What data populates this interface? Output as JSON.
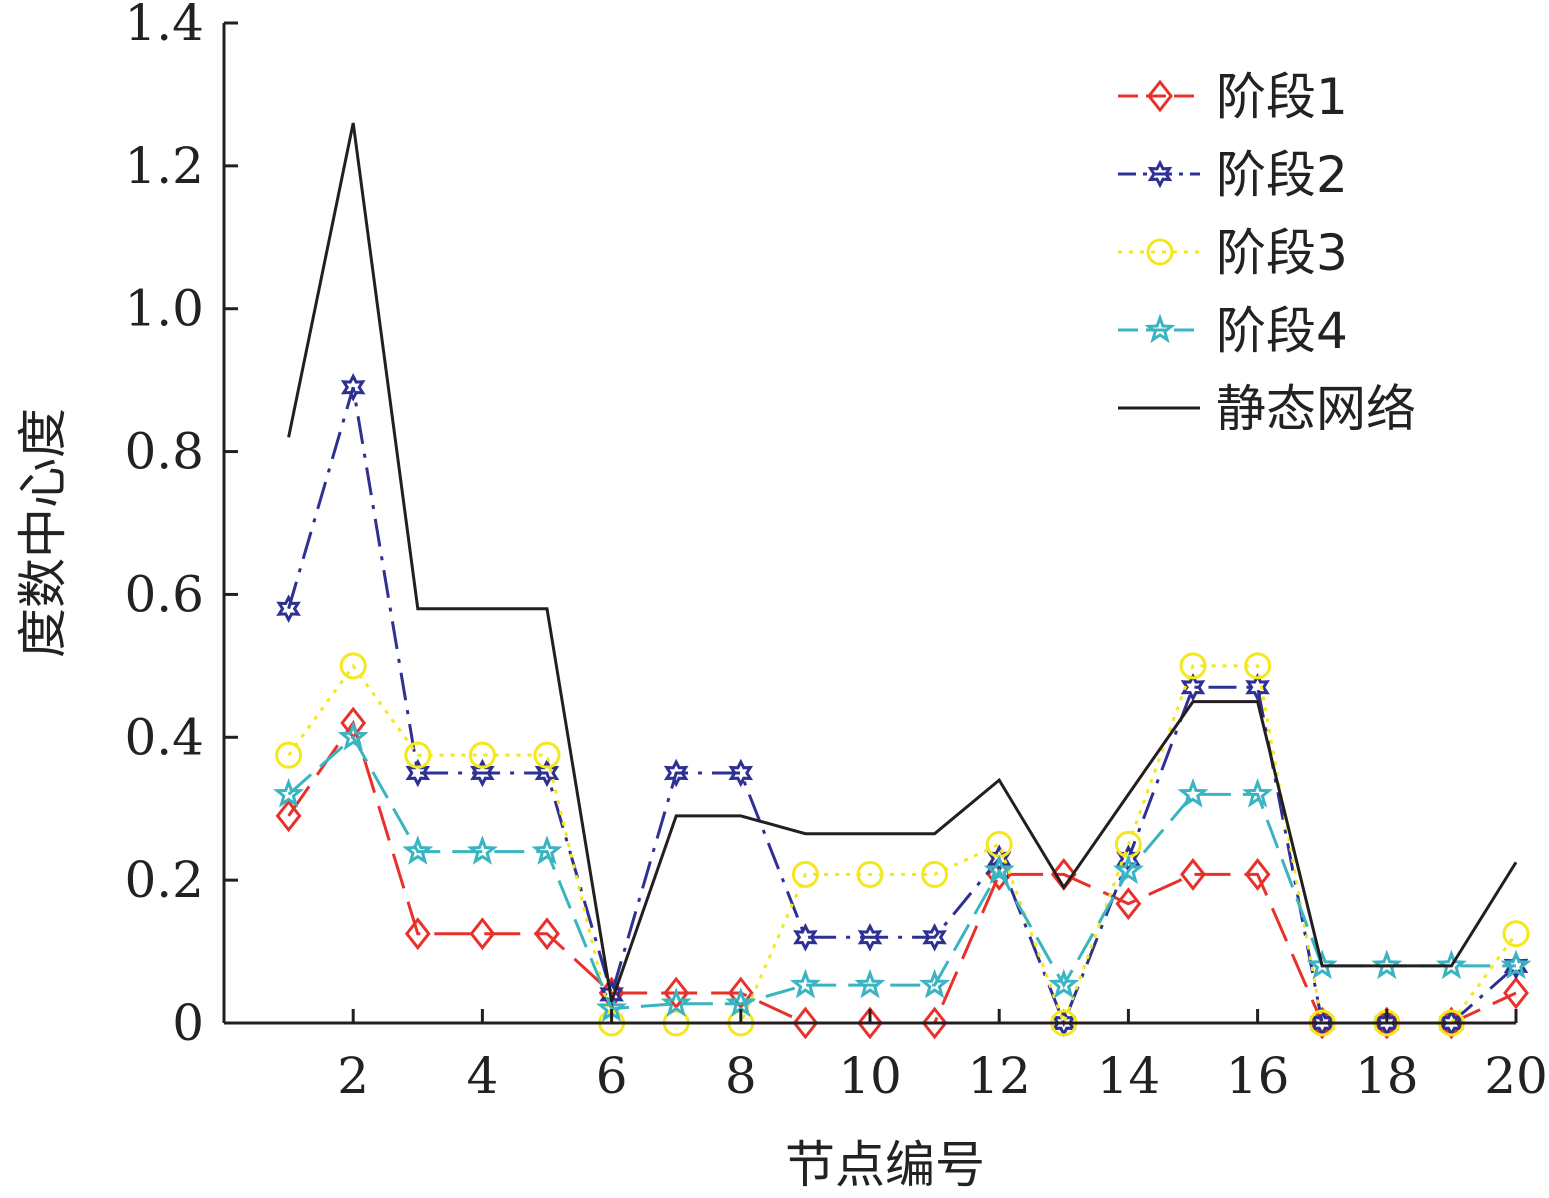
{
  "chart_data": {
    "type": "line",
    "xlabel": "节点编号",
    "ylabel": "度数中心度",
    "xlim": [
      0,
      20
    ],
    "ylim": [
      0,
      1.4
    ],
    "x": [
      1,
      2,
      3,
      4,
      5,
      6,
      7,
      8,
      9,
      10,
      11,
      12,
      13,
      14,
      15,
      16,
      17,
      18,
      19,
      20
    ],
    "x_ticks": [
      2,
      4,
      6,
      8,
      10,
      12,
      14,
      16,
      18,
      20
    ],
    "x_tick_labels": [
      "2",
      "4",
      "6",
      "8",
      "10",
      "12",
      "14",
      "16",
      "18",
      "20"
    ],
    "y_ticks": [
      0,
      0.2,
      0.4,
      0.6,
      0.8,
      1.0,
      1.2,
      1.4
    ],
    "y_tick_labels": [
      "0",
      "0.2",
      "0.4",
      "0.6",
      "0.8",
      "1.0",
      "1.2",
      "1.4"
    ],
    "legend_position": "top-right",
    "series": [
      {
        "name": "阶段1",
        "color": "#e8312a",
        "marker": "diamond",
        "dash": "36 14",
        "values": [
          0.29,
          0.42,
          0.125,
          0.125,
          0.125,
          0.042,
          0.042,
          0.042,
          0,
          0,
          0,
          0.208,
          0.208,
          0.167,
          0.208,
          0.208,
          0,
          0,
          0,
          0.042
        ]
      },
      {
        "name": "阶段2",
        "color": "#2e3192",
        "marker": "star6",
        "dash": "28 10 4 10",
        "values": [
          0.58,
          0.89,
          0.35,
          0.35,
          0.35,
          0.04,
          0.35,
          0.35,
          0.12,
          0.12,
          0.12,
          0.23,
          0,
          0.23,
          0.47,
          0.47,
          0,
          0,
          0,
          0.08
        ]
      },
      {
        "name": "阶段3",
        "color": "#f4e81c",
        "marker": "circle",
        "dash": "4 7",
        "values": [
          0.375,
          0.5,
          0.375,
          0.375,
          0.375,
          0,
          0,
          0,
          0.208,
          0.208,
          0.208,
          0.25,
          0,
          0.25,
          0.5,
          0.5,
          0,
          0,
          0,
          0.125
        ]
      },
      {
        "name": "阶段4",
        "color": "#3ab4c0",
        "marker": "star5",
        "dash": "30 12",
        "values": [
          0.32,
          0.4,
          0.24,
          0.24,
          0.24,
          0.02,
          0.027,
          0.027,
          0.053,
          0.053,
          0.053,
          0.213,
          0.053,
          0.213,
          0.32,
          0.32,
          0.08,
          0.08,
          0.08,
          0.08
        ]
      },
      {
        "name": "静态网络",
        "color": "#231f20",
        "marker": "none",
        "dash": "",
        "values": [
          0.82,
          1.26,
          0.58,
          0.58,
          0.58,
          0.03,
          0.29,
          0.29,
          0.265,
          0.265,
          0.265,
          0.34,
          0.19,
          0.32,
          0.45,
          0.45,
          0.08,
          0.08,
          0.08,
          0.225
        ]
      }
    ]
  }
}
